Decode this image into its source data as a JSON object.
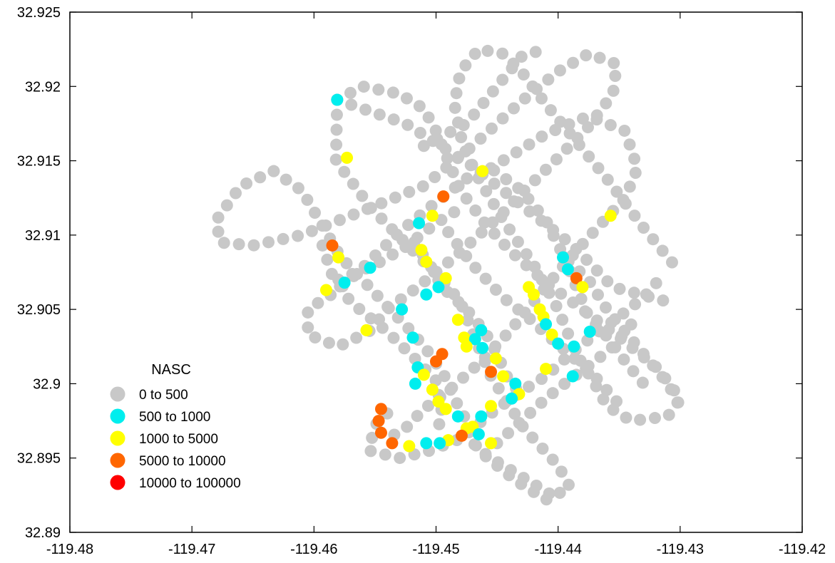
{
  "chart_data": {
    "type": "scatter",
    "title": "",
    "xlabel": "",
    "ylabel": "",
    "xlim": [
      -119.48,
      -119.42
    ],
    "ylim": [
      32.89,
      32.925
    ],
    "x_ticks": [
      "-119.48",
      "-119.47",
      "-119.46",
      "-119.45",
      "-119.44",
      "-119.43",
      "-119.42"
    ],
    "y_ticks": [
      "32.925",
      "32.92",
      "32.915",
      "32.91",
      "32.905",
      "32.9",
      "32.895",
      "32.89"
    ],
    "grid": false,
    "legend": {
      "title": "NASC",
      "placement": "bottom-left",
      "entries": [
        {
          "label": "0  to  500",
          "color": "#c8c8c8"
        },
        {
          "label": "500  to  1000",
          "color": "#00eeee"
        },
        {
          "label": "1000  to  5000",
          "color": "#ffff00"
        },
        {
          "label": "5000  to  10000",
          "color": "#ff6600"
        },
        {
          "label": "10000  to  100000",
          "color": "#ff0000"
        }
      ]
    },
    "tracks": [
      {
        "points": [
          [
            -119.4581,
            32.9191
          ],
          [
            -119.4525,
            32.9175
          ],
          [
            -119.4473,
            32.9148
          ],
          [
            -119.4388,
            32.9093
          ],
          [
            -119.4355,
            32.9065
          ],
          [
            -119.4305,
            32.9054
          ]
        ]
      },
      {
        "points": [
          [
            -119.4581,
            32.9191
          ],
          [
            -119.4582,
            32.915
          ],
          [
            -119.4553,
            32.9118
          ],
          [
            -119.4493,
            32.9068
          ],
          [
            -119.448,
            32.9055
          ],
          [
            -119.4468,
            32.903
          ],
          [
            -119.4455,
            32.9005
          ],
          [
            -119.4428,
            32.897
          ],
          [
            -119.44,
            32.8945
          ],
          [
            -119.439,
            32.893
          ],
          [
            -119.441,
            32.8922
          ],
          [
            -119.4435,
            32.8935
          ],
          [
            -119.4465,
            32.8955
          ],
          [
            -119.4475,
            32.897
          ]
        ]
      },
      {
        "points": [
          [
            -119.4581,
            32.9191
          ],
          [
            -119.456,
            32.92
          ],
          [
            -119.453,
            32.9195
          ],
          [
            -119.451,
            32.9185
          ],
          [
            -119.45,
            32.917
          ],
          [
            -119.449,
            32.915
          ],
          [
            -119.448,
            32.913
          ],
          [
            -119.446,
            32.9108
          ],
          [
            -119.444,
            32.909
          ],
          [
            -119.441,
            32.9068
          ],
          [
            -119.438,
            32.905
          ],
          [
            -119.4345,
            32.9028
          ],
          [
            -119.4318,
            32.901
          ],
          [
            -119.43,
            32.899
          ],
          [
            -119.431,
            32.8978
          ],
          [
            -119.434,
            32.8975
          ],
          [
            -119.436,
            32.8985
          ],
          [
            -119.437,
            32.9
          ],
          [
            -119.4385,
            32.902
          ],
          [
            -119.44,
            32.905
          ],
          [
            -119.442,
            32.908
          ],
          [
            -119.4445,
            32.911
          ],
          [
            -119.4465,
            32.9138
          ],
          [
            -119.4478,
            32.916
          ],
          [
            -119.4485,
            32.9188
          ],
          [
            -119.448,
            32.921
          ],
          [
            -119.4465,
            32.9225
          ],
          [
            -119.4445,
            32.9222
          ],
          [
            -119.443,
            32.921
          ],
          [
            -119.441,
            32.9188
          ],
          [
            -119.439,
            32.9168
          ],
          [
            -119.436,
            32.9138
          ],
          [
            -119.433,
            32.9105
          ],
          [
            -119.4305,
            32.908
          ]
        ]
      },
      {
        "points": [
          [
            -119.4633,
            32.9143
          ],
          [
            -119.466,
            32.9133
          ],
          [
            -119.468,
            32.911
          ],
          [
            -119.4677,
            32.9095
          ],
          [
            -119.465,
            32.9093
          ],
          [
            -119.461,
            32.91
          ],
          [
            -119.457,
            32.9113
          ],
          [
            -119.454,
            32.9123
          ],
          [
            -119.451,
            32.9133
          ],
          [
            -119.447,
            32.916
          ],
          [
            -119.443,
            32.919
          ],
          [
            -119.44,
            32.921
          ],
          [
            -119.4375,
            32.9222
          ],
          [
            -119.4352,
            32.9215
          ],
          [
            -119.4355,
            32.9195
          ],
          [
            -119.4375,
            32.9173
          ],
          [
            -119.44,
            32.9152
          ],
          [
            -119.443,
            32.9128
          ],
          [
            -119.4445,
            32.9115
          ],
          [
            -119.4485,
            32.9085
          ],
          [
            -119.4515,
            32.9065
          ],
          [
            -119.454,
            32.905
          ],
          [
            -119.4555,
            32.9035
          ],
          [
            -119.458,
            32.9025
          ],
          [
            -119.4605,
            32.9033
          ],
          [
            -119.4605,
            32.905
          ],
          [
            -119.458,
            32.9063
          ],
          [
            -119.456,
            32.9078
          ],
          [
            -119.453,
            32.9102
          ],
          [
            -119.45,
            32.9122
          ],
          [
            -119.4475,
            32.9138
          ],
          [
            -119.4455,
            32.9145
          ],
          [
            -119.443,
            32.913
          ],
          [
            -119.441,
            32.911
          ],
          [
            -119.4395,
            32.9085
          ],
          [
            -119.4375,
            32.907
          ],
          [
            -119.436,
            32.905
          ],
          [
            -119.4345,
            32.9035
          ],
          [
            -119.433,
            32.902
          ],
          [
            -119.431,
            32.9
          ],
          [
            -119.43,
            32.8985
          ]
        ]
      },
      {
        "points": [
          [
            -119.4633,
            32.9143
          ],
          [
            -119.461,
            32.913
          ],
          [
            -119.4585,
            32.9095
          ],
          [
            -119.4578,
            32.9085
          ],
          [
            -119.4558,
            32.9068
          ],
          [
            -119.454,
            32.9052
          ],
          [
            -119.452,
            32.9035
          ],
          [
            -119.4505,
            32.902
          ],
          [
            -119.4493,
            32.9005
          ],
          [
            -119.4485,
            32.899
          ],
          [
            -119.4475,
            32.8975
          ],
          [
            -119.4468,
            32.8958
          ],
          [
            -119.4455,
            32.895
          ],
          [
            -119.4445,
            32.8945
          ],
          [
            -119.4425,
            32.8935
          ],
          [
            -119.4405,
            32.8925
          ]
        ]
      },
      {
        "points": [
          [
            -119.4455,
            32.9145
          ],
          [
            -119.441,
            32.9168
          ],
          [
            -119.4375,
            32.918
          ],
          [
            -119.4345,
            32.917
          ],
          [
            -119.4335,
            32.9145
          ],
          [
            -119.4345,
            32.9125
          ],
          [
            -119.437,
            32.9103
          ],
          [
            -119.4395,
            32.908
          ],
          [
            -119.442,
            32.9055
          ],
          [
            -119.444,
            32.9035
          ],
          [
            -119.4463,
            32.9015
          ],
          [
            -119.449,
            32.8995
          ],
          [
            -119.451,
            32.8983
          ],
          [
            -119.4525,
            32.897
          ],
          [
            -119.454,
            32.8963
          ]
        ]
      },
      {
        "points": [
          [
            -119.454,
            32.898
          ],
          [
            -119.455,
            32.8972
          ],
          [
            -119.4555,
            32.8955
          ],
          [
            -119.453,
            32.895
          ],
          [
            -119.4505,
            32.8955
          ],
          [
            -119.448,
            32.8963
          ],
          [
            -119.4455,
            32.898
          ],
          [
            -119.443,
            32.8995
          ],
          [
            -119.441,
            32.9005
          ],
          [
            -119.439,
            32.902
          ],
          [
            -119.437,
            32.9033
          ],
          [
            -119.435,
            32.9045
          ],
          [
            -119.433,
            32.9058
          ],
          [
            -119.4315,
            32.9072
          ]
        ]
      },
      {
        "points": [
          [
            -119.4518,
            32.9095
          ],
          [
            -119.4505,
            32.908
          ],
          [
            -119.4495,
            32.9065
          ],
          [
            -119.4475,
            32.905
          ],
          [
            -119.446,
            32.9035
          ],
          [
            -119.445,
            32.902
          ],
          [
            -119.4442,
            32.9005
          ],
          [
            -119.443,
            32.8992
          ]
        ]
      },
      {
        "points": [
          [
            -119.4593,
            32.9093
          ],
          [
            -119.4585,
            32.9073
          ],
          [
            -119.457,
            32.9055
          ],
          [
            -119.454,
            32.9035
          ],
          [
            -119.4515,
            32.9015
          ],
          [
            -119.45,
            32.9002
          ],
          [
            -119.4495,
            32.898
          ],
          [
            -119.45,
            32.8965
          ]
        ]
      },
      {
        "points": [
          [
            -119.449,
            32.9102
          ],
          [
            -119.447,
            32.908
          ],
          [
            -119.4445,
            32.9058
          ],
          [
            -119.4425,
            32.9045
          ],
          [
            -119.4405,
            32.903
          ],
          [
            -119.4388,
            32.9018
          ],
          [
            -119.437,
            32.9005
          ],
          [
            -119.4352,
            32.8988
          ]
        ]
      },
      {
        "points": [
          [
            -119.4395,
            32.9085
          ],
          [
            -119.4385,
            32.9065
          ],
          [
            -119.4375,
            32.9045
          ],
          [
            -119.4358,
            32.903
          ],
          [
            -119.4345,
            32.9015
          ],
          [
            -119.433,
            32.9
          ]
        ]
      },
      {
        "points": [
          [
            -119.445,
            32.896
          ],
          [
            -119.443,
            32.8975
          ],
          [
            -119.441,
            32.899
          ],
          [
            -119.439,
            32.9003
          ],
          [
            -119.437,
            32.9015
          ],
          [
            -119.4355,
            32.9025
          ],
          [
            -119.434,
            32.904
          ]
        ]
      },
      {
        "points": [
          [
            -119.451,
            32.916
          ],
          [
            -119.4475,
            32.9175
          ],
          [
            -119.445,
            32.92
          ],
          [
            -119.443,
            32.922
          ],
          [
            -119.4412,
            32.9225
          ]
        ]
      },
      {
        "points": [
          [
            -119.458,
            32.907
          ],
          [
            -119.455,
            32.908
          ],
          [
            -119.4525,
            32.9092
          ],
          [
            -119.45,
            32.9108
          ],
          [
            -119.448,
            32.9118
          ]
        ]
      }
    ],
    "highlights": [
      {
        "x": -119.4581,
        "y": 32.9191,
        "bin": 1
      },
      {
        "x": -119.4573,
        "y": 32.9152,
        "bin": 2
      },
      {
        "x": -119.4494,
        "y": 32.9126,
        "bin": 3
      },
      {
        "x": -119.4514,
        "y": 32.9108,
        "bin": 1
      },
      {
        "x": -119.4503,
        "y": 32.9113,
        "bin": 2
      },
      {
        "x": -119.4554,
        "y": 32.9078,
        "bin": 1
      },
      {
        "x": -119.4575,
        "y": 32.9068,
        "bin": 1
      },
      {
        "x": -119.459,
        "y": 32.9063,
        "bin": 2
      },
      {
        "x": -119.4585,
        "y": 32.9093,
        "bin": 3
      },
      {
        "x": -119.458,
        "y": 32.9085,
        "bin": 2
      },
      {
        "x": -119.4512,
        "y": 32.909,
        "bin": 2
      },
      {
        "x": -119.4508,
        "y": 32.9082,
        "bin": 2
      },
      {
        "x": -119.4492,
        "y": 32.9071,
        "bin": 2
      },
      {
        "x": -119.4528,
        "y": 32.905,
        "bin": 1
      },
      {
        "x": -119.4508,
        "y": 32.906,
        "bin": 1
      },
      {
        "x": -119.4498,
        "y": 32.9065,
        "bin": 1
      },
      {
        "x": -119.4482,
        "y": 32.9043,
        "bin": 2
      },
      {
        "x": -119.4477,
        "y": 32.9031,
        "bin": 2
      },
      {
        "x": -119.4468,
        "y": 32.903,
        "bin": 1
      },
      {
        "x": -119.4463,
        "y": 32.9036,
        "bin": 1
      },
      {
        "x": -119.4462,
        "y": 32.9024,
        "bin": 1
      },
      {
        "x": -119.4475,
        "y": 32.9025,
        "bin": 2
      },
      {
        "x": -119.4557,
        "y": 32.9036,
        "bin": 2
      },
      {
        "x": -119.4519,
        "y": 32.9031,
        "bin": 1
      },
      {
        "x": -119.4515,
        "y": 32.9011,
        "bin": 1
      },
      {
        "x": -119.451,
        "y": 32.9006,
        "bin": 2
      },
      {
        "x": -119.45,
        "y": 32.9015,
        "bin": 3
      },
      {
        "x": -119.4495,
        "y": 32.902,
        "bin": 3
      },
      {
        "x": -119.4517,
        "y": 32.9,
        "bin": 1
      },
      {
        "x": -119.4503,
        "y": 32.8996,
        "bin": 2
      },
      {
        "x": -119.4498,
        "y": 32.8988,
        "bin": 2
      },
      {
        "x": -119.4492,
        "y": 32.8983,
        "bin": 2
      },
      {
        "x": -119.4482,
        "y": 32.8978,
        "bin": 1
      },
      {
        "x": -119.4463,
        "y": 32.8978,
        "bin": 1
      },
      {
        "x": -119.4455,
        "y": 32.8985,
        "bin": 2
      },
      {
        "x": -119.4475,
        "y": 32.897,
        "bin": 2
      },
      {
        "x": -119.447,
        "y": 32.8971,
        "bin": 2
      },
      {
        "x": -119.4465,
        "y": 32.8966,
        "bin": 1
      },
      {
        "x": -119.4455,
        "y": 32.896,
        "bin": 2
      },
      {
        "x": -119.4479,
        "y": 32.8965,
        "bin": 3
      },
      {
        "x": -119.449,
        "y": 32.8962,
        "bin": 2
      },
      {
        "x": -119.4497,
        "y": 32.896,
        "bin": 1
      },
      {
        "x": -119.4508,
        "y": 32.896,
        "bin": 1
      },
      {
        "x": -119.4522,
        "y": 32.8958,
        "bin": 2
      },
      {
        "x": -119.4536,
        "y": 32.896,
        "bin": 3
      },
      {
        "x": -119.4545,
        "y": 32.8967,
        "bin": 3
      },
      {
        "x": -119.4547,
        "y": 32.8975,
        "bin": 3
      },
      {
        "x": -119.4545,
        "y": 32.8983,
        "bin": 3
      },
      {
        "x": -119.4455,
        "y": 32.9008,
        "bin": 3
      },
      {
        "x": -119.4451,
        "y": 32.9017,
        "bin": 2
      },
      {
        "x": -119.4445,
        "y": 32.9005,
        "bin": 2
      },
      {
        "x": -119.4435,
        "y": 32.9,
        "bin": 1
      },
      {
        "x": -119.4432,
        "y": 32.8993,
        "bin": 2
      },
      {
        "x": -119.4438,
        "y": 32.899,
        "bin": 1
      },
      {
        "x": -119.4424,
        "y": 32.9065,
        "bin": 2
      },
      {
        "x": -119.442,
        "y": 32.906,
        "bin": 2
      },
      {
        "x": -119.4415,
        "y": 32.905,
        "bin": 2
      },
      {
        "x": -119.4412,
        "y": 32.9045,
        "bin": 2
      },
      {
        "x": -119.441,
        "y": 32.904,
        "bin": 1
      },
      {
        "x": -119.4405,
        "y": 32.9033,
        "bin": 2
      },
      {
        "x": -119.44,
        "y": 32.9027,
        "bin": 1
      },
      {
        "x": -119.4396,
        "y": 32.9085,
        "bin": 1
      },
      {
        "x": -119.4392,
        "y": 32.9077,
        "bin": 1
      },
      {
        "x": -119.4385,
        "y": 32.9071,
        "bin": 3
      },
      {
        "x": -119.438,
        "y": 32.9065,
        "bin": 2
      },
      {
        "x": -119.4387,
        "y": 32.9025,
        "bin": 1
      },
      {
        "x": -119.4374,
        "y": 32.9035,
        "bin": 1
      },
      {
        "x": -119.441,
        "y": 32.901,
        "bin": 2
      },
      {
        "x": -119.4388,
        "y": 32.9005,
        "bin": 1
      },
      {
        "x": -119.4357,
        "y": 32.9113,
        "bin": 2
      },
      {
        "x": -119.4462,
        "y": 32.9143,
        "bin": 2
      }
    ]
  }
}
